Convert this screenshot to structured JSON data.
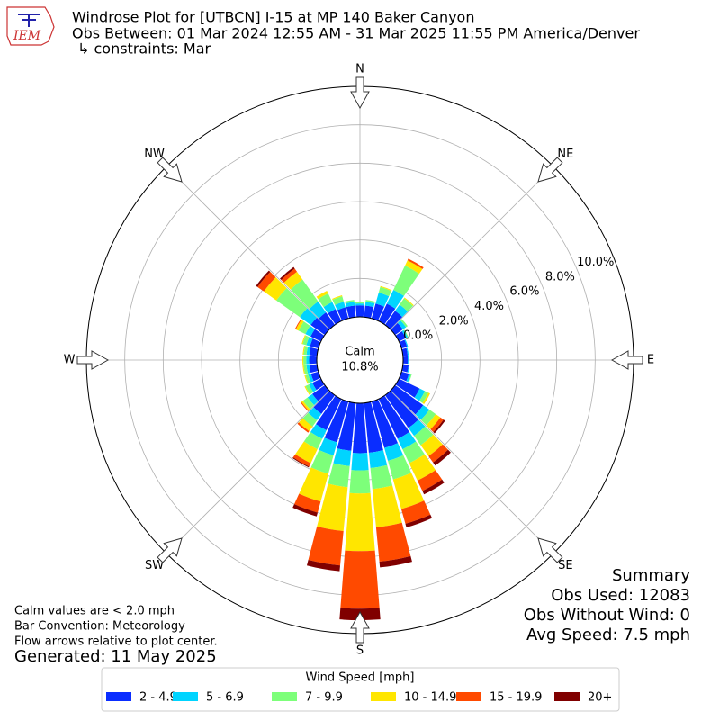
{
  "header": {
    "logo_text": "IEM",
    "title": "Windrose Plot for [UTBCN] I-15 at MP 140 Baker Canyon",
    "subtitle": "Obs Between: 01 Mar 2024 12:55 AM - 31 Mar 2025 11:55 PM America/Denver",
    "constraints": "↳ constraints: Mar"
  },
  "chart_data": {
    "type": "windrose",
    "categories": [
      null,
      null,
      null,
      null,
      null,
      null,
      null,
      null,
      null,
      null,
      null,
      null,
      null,
      null,
      null,
      null,
      null,
      null,
      null,
      null,
      null,
      null,
      null,
      null,
      null,
      null,
      null,
      null,
      null,
      null,
      null,
      null,
      null,
      null,
      null,
      null
    ],
    "compass_labels": [
      "N",
      "NE",
      "E",
      "SE",
      "S",
      "SW",
      "W",
      "NW"
    ],
    "calm_label": "Calm",
    "calm_text": "10.8%",
    "ylim": [
      0,
      12
    ],
    "yticks": [
      {
        "value": 0,
        "label": "0.0%"
      },
      {
        "value": 2,
        "label": "2.0%"
      },
      {
        "value": 4,
        "label": "4.0%"
      },
      {
        "value": 6,
        "label": "6.0%"
      },
      {
        "value": 8,
        "label": "8.0%"
      },
      {
        "value": 10,
        "label": "10.0%"
      }
    ],
    "grid": true,
    "legend_title": "Wind Speed [mph]",
    "series": [
      {
        "name": "2 - 4.9",
        "color": "#0a2dff",
        "values": [
          0.6,
          0.6,
          0.8,
          1.0,
          0.9,
          0.5,
          0.4,
          0.3,
          0.25,
          0.25,
          0.3,
          0.4,
          1.2,
          1.8,
          2.1,
          2.3,
          2.5,
          2.6,
          2.6,
          2.5,
          2.2,
          1.8,
          1.2,
          0.8,
          0.5,
          0.4,
          0.4,
          0.4,
          0.4,
          0.45,
          0.6,
          0.9,
          0.8,
          0.7,
          0.6,
          0.6
        ]
      },
      {
        "name": "5 - 6.9",
        "color": "#00d4ff",
        "values": [
          0.1,
          0.2,
          0.6,
          0.8,
          0.4,
          0.2,
          0.1,
          0.05,
          0.05,
          0.05,
          0.05,
          0.1,
          0.3,
          0.4,
          0.5,
          0.6,
          0.7,
          0.8,
          0.9,
          0.8,
          0.7,
          0.5,
          0.4,
          0.3,
          0.2,
          0.15,
          0.15,
          0.15,
          0.15,
          0.2,
          0.3,
          0.7,
          0.7,
          0.4,
          0.3,
          0.2
        ]
      },
      {
        "name": "7 - 9.9",
        "color": "#7dff7a",
        "values": [
          0.1,
          0.1,
          0.3,
          1.4,
          0.4,
          0.1,
          0.05,
          0,
          0,
          0,
          0,
          0.05,
          0.2,
          0.4,
          0.6,
          0.8,
          1.0,
          1.1,
          1.2,
          1.1,
          1.0,
          0.6,
          0.4,
          0.3,
          0.2,
          0.15,
          0.15,
          0.15,
          0.15,
          0.2,
          0.4,
          1.5,
          1.4,
          0.5,
          0.3,
          0.1
        ]
      },
      {
        "name": "10 - 14.9",
        "color": "#ffe600",
        "values": [
          0,
          0,
          0.05,
          0.3,
          0.05,
          0,
          0,
          0,
          0,
          0,
          0,
          0,
          0.1,
          0.3,
          0.7,
          1.0,
          1.6,
          2.0,
          3.0,
          2.3,
          1.5,
          0.8,
          0.3,
          0.1,
          0.05,
          0.05,
          0.05,
          0.05,
          0.05,
          0.05,
          0.15,
          0.8,
          0.5,
          0.15,
          0.05,
          0
        ]
      },
      {
        "name": "15 - 19.9",
        "color": "#ff4a00",
        "values": [
          0,
          0,
          0,
          0.1,
          0,
          0,
          0,
          0,
          0,
          0,
          0,
          0,
          0,
          0.2,
          0.4,
          0.6,
          0.8,
          1.8,
          3.0,
          1.8,
          0.6,
          0.2,
          0.1,
          0.05,
          0,
          0,
          0,
          0,
          0,
          0,
          0.05,
          0.4,
          0.2,
          0,
          0,
          0
        ]
      },
      {
        "name": "20+",
        "color": "#800000",
        "values": [
          0,
          0,
          0,
          0,
          0,
          0,
          0,
          0,
          0,
          0,
          0,
          0,
          0,
          0.1,
          0.2,
          0.2,
          0.2,
          0.3,
          0.6,
          0.3,
          0.2,
          0.05,
          0,
          0,
          0,
          0,
          0,
          0,
          0,
          0,
          0,
          0.1,
          0.1,
          0,
          0,
          0
        ]
      }
    ]
  },
  "summary": {
    "title": "Summary",
    "lines": [
      "Obs Used: 12083",
      "Obs Without Wind: 0",
      "Avg Speed: 7.5 mph"
    ]
  },
  "notes": [
    "Calm values are < 2.0 mph",
    "Bar Convention: Meteorology",
    "Flow arrows relative to plot center."
  ],
  "generated": "Generated: 11 May 2025"
}
